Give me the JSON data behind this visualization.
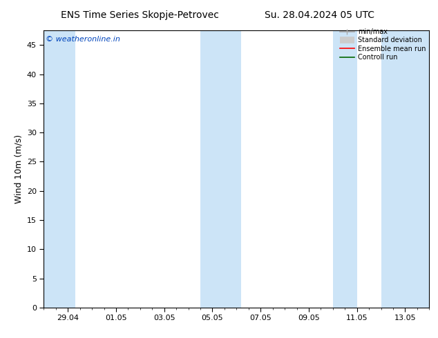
{
  "title_left": "ENS Time Series Skopje-Petrovec",
  "title_right": "Su. 28.04.2024 05 UTC",
  "ylabel": "Wind 10m (m/s)",
  "ylim": [
    0,
    47.5
  ],
  "yticks": [
    0,
    5,
    10,
    15,
    20,
    25,
    30,
    35,
    40,
    45
  ],
  "xtick_labels": [
    "29.04",
    "01.05",
    "03.05",
    "05.05",
    "07.05",
    "09.05",
    "11.05",
    "13.05"
  ],
  "xtick_positions": [
    1,
    3,
    5,
    7,
    9,
    11,
    13,
    15
  ],
  "xlim": [
    0,
    16
  ],
  "watermark": "© weatheronline.in",
  "shaded_bands": [
    [
      0.0,
      1.3
    ],
    [
      6.5,
      7.5
    ],
    [
      7.5,
      8.2
    ],
    [
      12.0,
      13.0
    ],
    [
      14.0,
      16.0
    ]
  ],
  "shade_color": "#cce4f7",
  "background_color": "#ffffff",
  "legend_items": [
    "min/max",
    "Standard deviation",
    "Ensemble mean run",
    "Controll run"
  ],
  "title_fontsize": 10,
  "tick_fontsize": 8,
  "ylabel_fontsize": 9,
  "watermark_color": "#0044bb",
  "watermark_fontsize": 8
}
